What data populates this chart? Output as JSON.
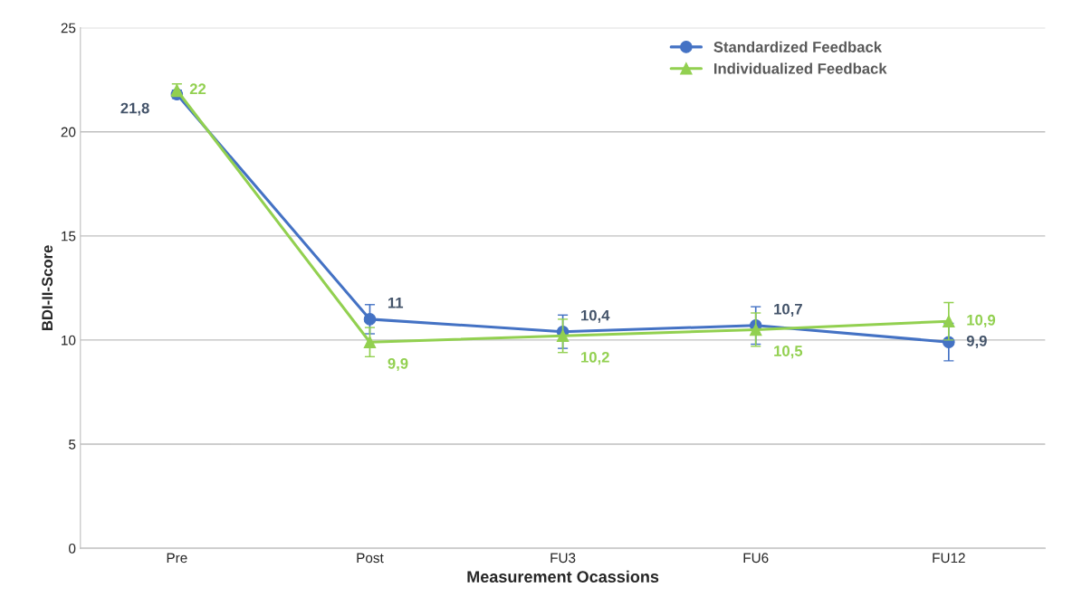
{
  "chart_data": {
    "type": "line",
    "xlabel": "Measurement Ocassions",
    "ylabel": "BDI-II-Score",
    "categories": [
      "Pre",
      "Post",
      "FU3",
      "FU6",
      "FU12"
    ],
    "series": [
      {
        "name": "Standardized Feedback",
        "color": "#4472c4",
        "marker": "circle",
        "values": [
          21.8,
          11,
          10.4,
          10.7,
          9.9
        ],
        "errors": [
          0.2,
          0.7,
          0.8,
          0.9,
          0.9
        ],
        "value_labels": [
          "21,8",
          "11",
          "10,4",
          "10,7",
          "9,9"
        ]
      },
      {
        "name": "Individualized Feedback",
        "color": "#92d050",
        "marker": "triangle",
        "values": [
          22,
          9.9,
          10.2,
          10.5,
          10.9
        ],
        "errors": [
          0.3,
          0.7,
          0.8,
          0.8,
          0.9
        ],
        "value_labels": [
          "22",
          "9,9",
          "10,2",
          "10,5",
          "10,9"
        ]
      }
    ],
    "ylim": [
      0,
      25
    ],
    "yticks": [
      0,
      5,
      10,
      15,
      20,
      25
    ],
    "grid": "y",
    "legend": "top right"
  }
}
